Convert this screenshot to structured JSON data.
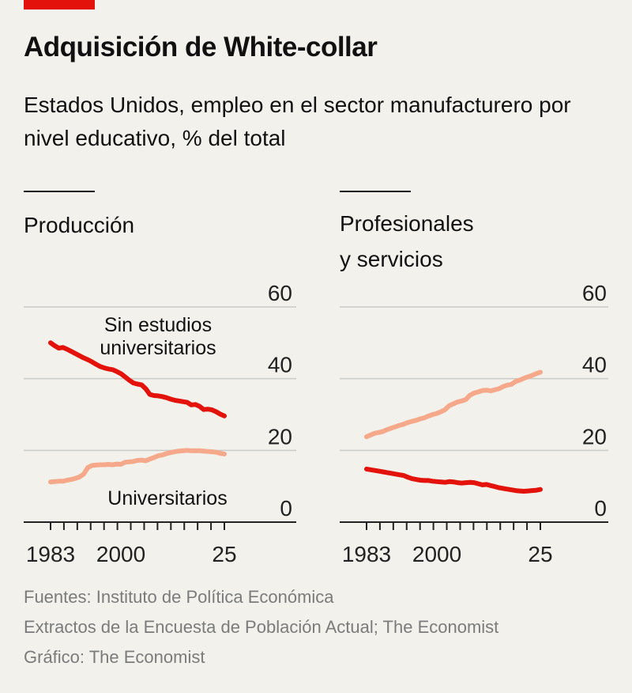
{
  "header": {
    "title": "Adquisición de White-collar",
    "subtitle": "Estados Unidos, empleo en el sector manufacturero por nivel educativo, % del total"
  },
  "colors": {
    "accent": "#e3120b",
    "dark_series": "#e3120b",
    "light_series": "#f5a98a"
  },
  "chart_data": [
    {
      "type": "line",
      "title": "Producción",
      "xlabel": "",
      "ylabel": "",
      "x_ticks": [
        "1983",
        "2000",
        "25"
      ],
      "y_ticks": [
        "60",
        "40",
        "20",
        "0"
      ],
      "ylim": [
        0,
        60
      ],
      "xlim": [
        1983,
        2025
      ],
      "grid": true,
      "series": [
        {
          "name": "Sin estudios universitarios",
          "color": "#e3120b",
          "x": [
            1983,
            1984,
            1985,
            1986,
            1987,
            1988,
            1989,
            1990,
            1991,
            1992,
            1993,
            1994,
            1995,
            1996,
            1997,
            1998,
            1999,
            2000,
            2001,
            2002,
            2003,
            2004,
            2005,
            2006,
            2007,
            2008,
            2009,
            2010,
            2011,
            2012,
            2013,
            2014,
            2015,
            2016,
            2017,
            2018,
            2019,
            2020,
            2021,
            2022,
            2023,
            2024,
            2025
          ],
          "y": [
            50,
            49.2,
            48.5,
            48.7,
            48.2,
            47.6,
            47,
            46.4,
            45.8,
            45.3,
            44.7,
            44,
            43.4,
            43,
            42.7,
            42.5,
            42,
            41.4,
            40.5,
            39.6,
            38.8,
            38.5,
            38.3,
            37.2,
            35.6,
            35.3,
            35.2,
            35,
            34.7,
            34.3,
            34,
            33.8,
            33.6,
            33.4,
            32.7,
            32.8,
            32.3,
            31.4,
            31.5,
            31.3,
            30.8,
            30.1,
            29.6
          ]
        },
        {
          "name": "Universitarios",
          "color": "#f5a98a",
          "x": [
            1983,
            1984,
            1985,
            1986,
            1987,
            1988,
            1989,
            1990,
            1991,
            1992,
            1993,
            1994,
            1995,
            1996,
            1997,
            1998,
            1999,
            2000,
            2001,
            2002,
            2003,
            2004,
            2005,
            2006,
            2007,
            2008,
            2009,
            2010,
            2011,
            2012,
            2013,
            2014,
            2015,
            2016,
            2017,
            2018,
            2019,
            2020,
            2021,
            2022,
            2023,
            2024,
            2025
          ],
          "y": [
            11.2,
            11.3,
            11.4,
            11.4,
            11.7,
            11.9,
            12.2,
            12.6,
            13.4,
            15.2,
            15.8,
            15.9,
            16,
            16,
            16.1,
            16,
            16.2,
            16.1,
            16.7,
            16.8,
            16.9,
            17.2,
            17.3,
            17.1,
            17.6,
            18,
            18.5,
            18.7,
            19.1,
            19.4,
            19.6,
            19.8,
            19.9,
            20,
            19.9,
            19.9,
            19.9,
            19.8,
            19.7,
            19.6,
            19.5,
            19.2,
            19
          ]
        }
      ],
      "annotations": [
        "Sin estudios universitarios",
        "Universitarios"
      ]
    },
    {
      "type": "line",
      "title": "Profesionales y servicios",
      "xlabel": "",
      "ylabel": "",
      "x_ticks": [
        "1983",
        "2000",
        "25"
      ],
      "y_ticks": [
        "60",
        "40",
        "20",
        "0"
      ],
      "ylim": [
        0,
        60
      ],
      "xlim": [
        1983,
        2025
      ],
      "grid": true,
      "series": [
        {
          "name": "Universitarios",
          "color": "#f5a98a",
          "x": [
            1983,
            1984,
            1985,
            1986,
            1987,
            1988,
            1989,
            1990,
            1991,
            1992,
            1993,
            1994,
            1995,
            1996,
            1997,
            1998,
            1999,
            2000,
            2001,
            2002,
            2003,
            2004,
            2005,
            2006,
            2007,
            2008,
            2009,
            2010,
            2011,
            2012,
            2013,
            2014,
            2015,
            2016,
            2017,
            2018,
            2019,
            2020,
            2021,
            2022,
            2023,
            2024,
            2025
          ],
          "y": [
            23.8,
            24.3,
            24.8,
            25,
            25.3,
            25.8,
            26.2,
            26.6,
            27,
            27.3,
            27.8,
            28.1,
            28.4,
            28.8,
            29.1,
            29.6,
            30,
            30.3,
            30.8,
            31.4,
            32.5,
            33,
            33.5,
            33.8,
            34.2,
            35.4,
            36,
            36.3,
            36.7,
            36.8,
            36.6,
            36.9,
            37.2,
            37.8,
            38.2,
            38.4,
            39.2,
            39.6,
            40.1,
            40.5,
            40.9,
            41.4,
            41.8
          ]
        },
        {
          "name": "Sin estudios universitarios",
          "color": "#e3120b",
          "x": [
            1983,
            1984,
            1985,
            1986,
            1987,
            1988,
            1989,
            1990,
            1991,
            1992,
            1993,
            1994,
            1995,
            1996,
            1997,
            1998,
            1999,
            2000,
            2001,
            2002,
            2003,
            2004,
            2005,
            2006,
            2007,
            2008,
            2009,
            2010,
            2011,
            2012,
            2013,
            2014,
            2015,
            2016,
            2017,
            2018,
            2019,
            2020,
            2021,
            2022,
            2023,
            2024,
            2025
          ],
          "y": [
            14.8,
            14.6,
            14.4,
            14.2,
            14,
            13.8,
            13.6,
            13.4,
            13.2,
            13,
            12.5,
            12.1,
            11.9,
            11.7,
            11.6,
            11.6,
            11.4,
            11.3,
            11.2,
            11.1,
            11.3,
            11.2,
            11,
            10.9,
            11,
            11.1,
            11,
            10.7,
            10.4,
            10.5,
            10.2,
            9.9,
            9.6,
            9.4,
            9.2,
            9,
            8.8,
            8.7,
            8.6,
            8.7,
            8.8,
            8.9,
            9.1
          ]
        }
      ],
      "annotations": []
    }
  ],
  "footer": {
    "sources_line1": "Fuentes: Instituto de Política Económica",
    "sources_line2": "Extractos de la Encuesta de Población Actual; The Economist",
    "credit": "Gráfico: The Economist"
  }
}
